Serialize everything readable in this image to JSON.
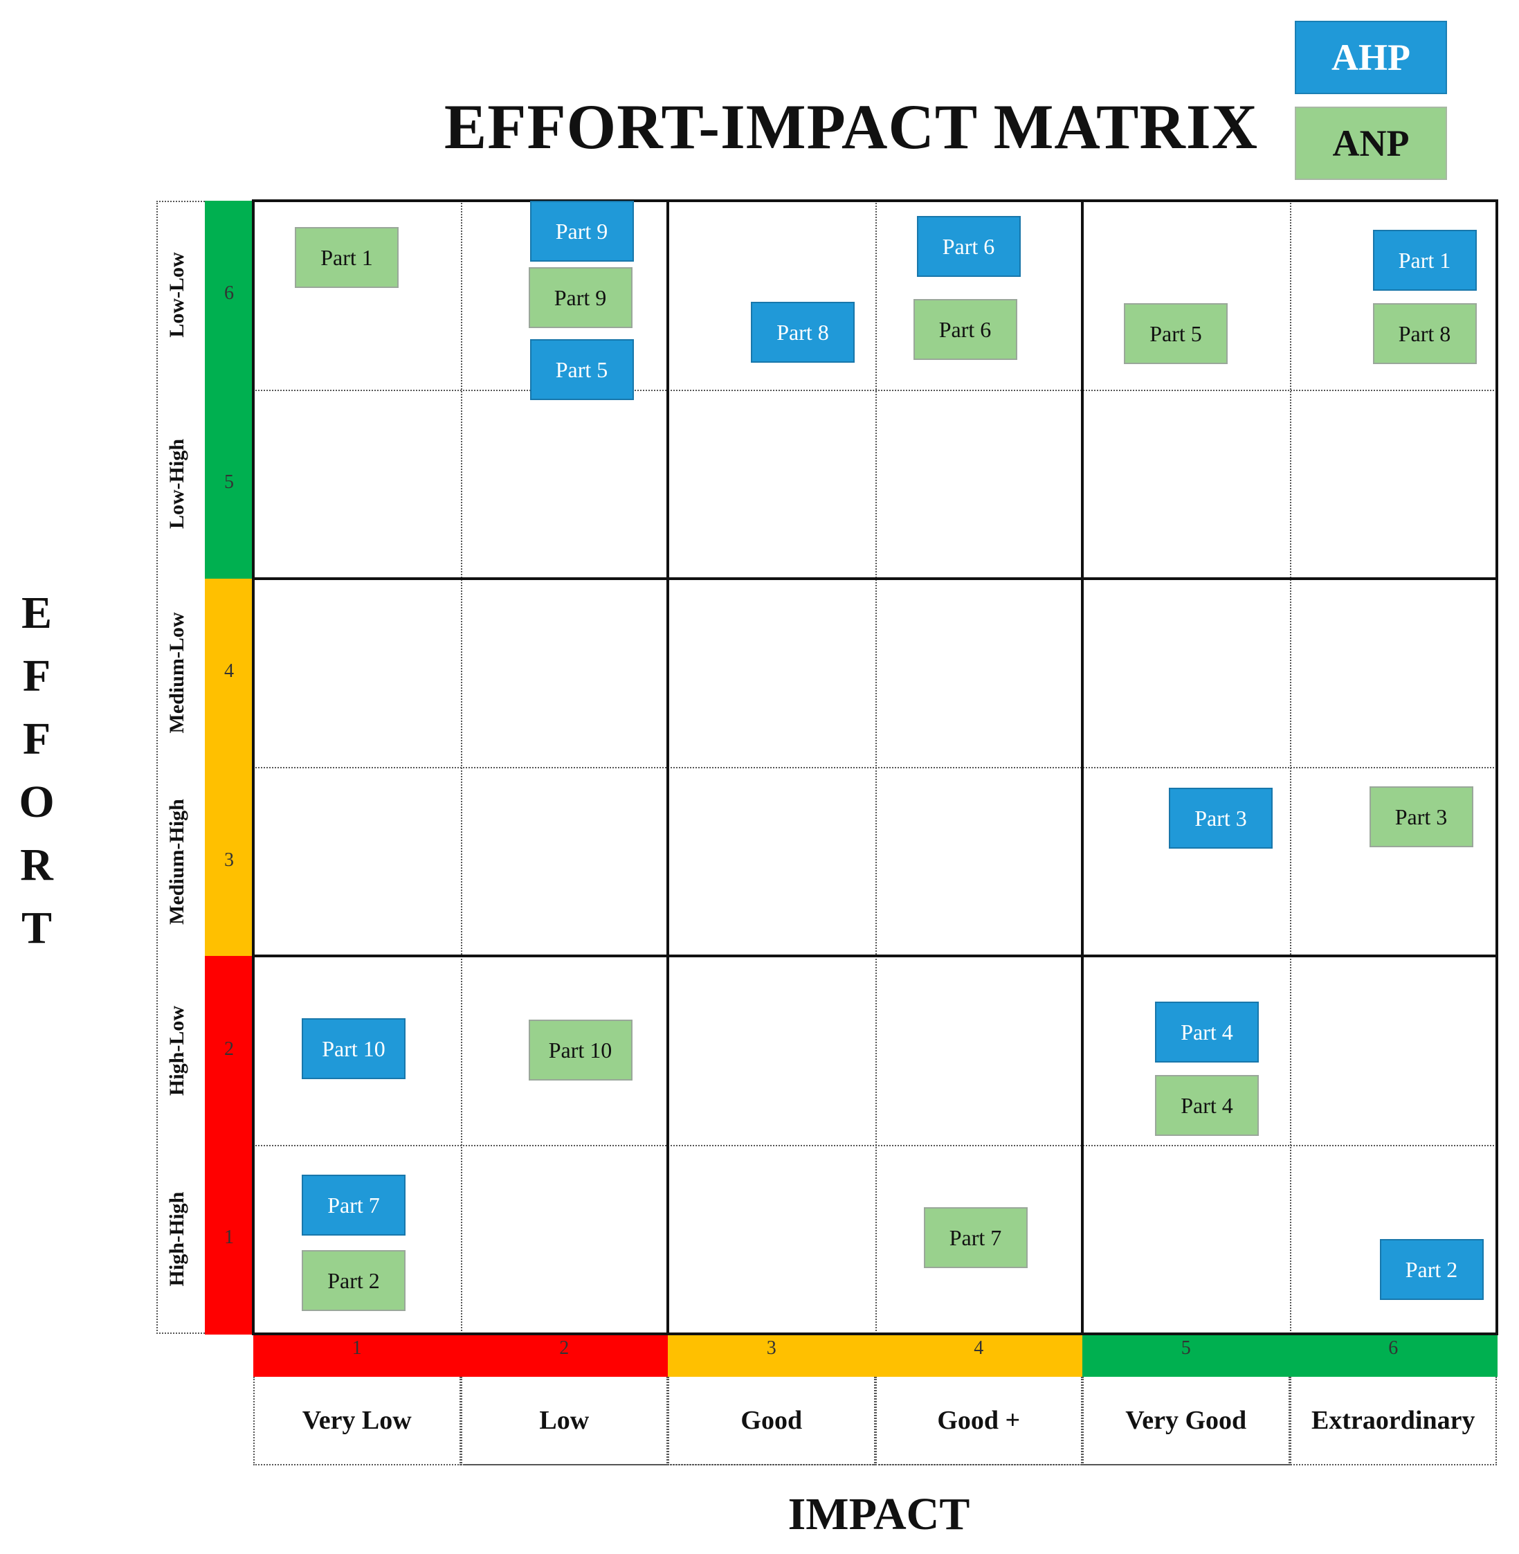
{
  "title": "EFFORT-IMPACT MATRIX",
  "legend": {
    "ahp": "AHP",
    "anp": "ANP"
  },
  "effort_axis_letters": [
    "E",
    "F",
    "F",
    "O",
    "R",
    "T"
  ],
  "impact_axis_title": "IMPACT",
  "effort_levels": [
    {
      "num": "6",
      "label": "Low-Low",
      "color": "#00b050"
    },
    {
      "num": "5",
      "label": "Low-High",
      "color": "#00b050"
    },
    {
      "num": "4",
      "label": "Medium-Low",
      "color": "#ffc000"
    },
    {
      "num": "3",
      "label": "Medium-High",
      "color": "#ffc000"
    },
    {
      "num": "2",
      "label": "High-Low",
      "color": "#ff0000"
    },
    {
      "num": "1",
      "label": "High-High",
      "color": "#ff0000"
    }
  ],
  "impact_levels": [
    {
      "num": "1",
      "label": "Very Low",
      "color": "#ff0000"
    },
    {
      "num": "2",
      "label": "Low",
      "color": "#ff0000"
    },
    {
      "num": "3",
      "label": "Good",
      "color": "#ffc000"
    },
    {
      "num": "4",
      "label": "Good +",
      "color": "#ffc000"
    },
    {
      "num": "5",
      "label": "Very Good",
      "color": "#00b050"
    },
    {
      "num": "6",
      "label": "Extraordinary",
      "color": "#00b050"
    }
  ],
  "parts": [
    {
      "label": "Part 1",
      "method": "anp",
      "impact": 1,
      "effort": 6
    },
    {
      "label": "Part 9",
      "method": "ahp",
      "impact": 2,
      "effort": 6
    },
    {
      "label": "Part 9",
      "method": "anp",
      "impact": 2,
      "effort": 6
    },
    {
      "label": "Part 5",
      "method": "ahp",
      "impact": 2,
      "effort": 6
    },
    {
      "label": "Part 8",
      "method": "ahp",
      "impact": 3,
      "effort": 6
    },
    {
      "label": "Part 6",
      "method": "ahp",
      "impact": 4,
      "effort": 6
    },
    {
      "label": "Part 6",
      "method": "anp",
      "impact": 4,
      "effort": 6
    },
    {
      "label": "Part 5",
      "method": "anp",
      "impact": 5,
      "effort": 6
    },
    {
      "label": "Part 1",
      "method": "ahp",
      "impact": 6,
      "effort": 6
    },
    {
      "label": "Part 8",
      "method": "anp",
      "impact": 6,
      "effort": 6
    },
    {
      "label": "Part 3",
      "method": "ahp",
      "impact": 5,
      "effort": 3
    },
    {
      "label": "Part 3",
      "method": "anp",
      "impact": 6,
      "effort": 3
    },
    {
      "label": "Part 10",
      "method": "ahp",
      "impact": 1,
      "effort": 2
    },
    {
      "label": "Part 10",
      "method": "anp",
      "impact": 2,
      "effort": 2
    },
    {
      "label": "Part 4",
      "method": "ahp",
      "impact": 5,
      "effort": 2
    },
    {
      "label": "Part 4",
      "method": "anp",
      "impact": 5,
      "effort": 2
    },
    {
      "label": "Part 7",
      "method": "ahp",
      "impact": 1,
      "effort": 1
    },
    {
      "label": "Part 2",
      "method": "anp",
      "impact": 1,
      "effort": 1
    },
    {
      "label": "Part 7",
      "method": "anp",
      "impact": 4,
      "effort": 1
    },
    {
      "label": "Part 2",
      "method": "ahp",
      "impact": 6,
      "effort": 1
    }
  ]
}
